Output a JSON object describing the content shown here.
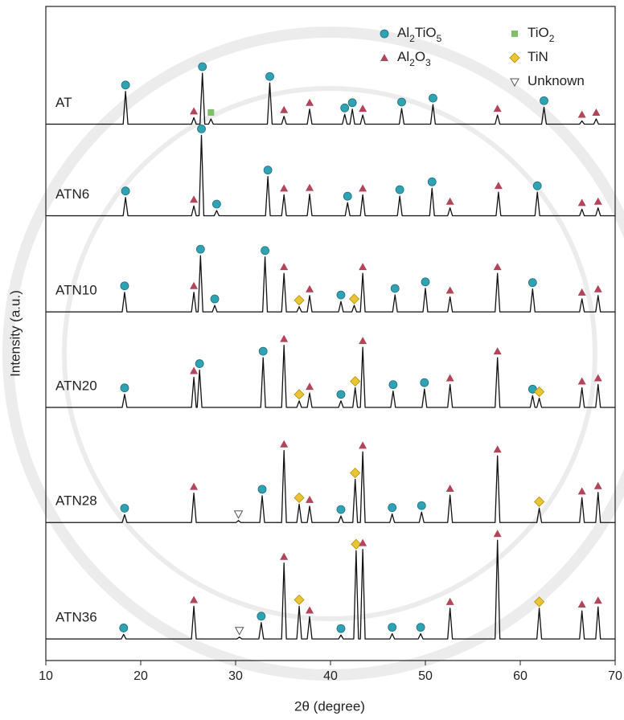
{
  "chart_data": {
    "type": "line",
    "x_label": "2θ (degree)",
    "y_label": "Intensity (a.u.)",
    "xlim": [
      10,
      70
    ],
    "xticks": [
      10,
      20,
      30,
      40,
      50,
      60,
      70
    ],
    "ylim": [
      0,
      100
    ],
    "legend": [
      {
        "name": "Al2TiO5",
        "color": "#2fa3b4",
        "marker": "circle"
      },
      {
        "name": "Al2O3",
        "color": "#b2455a",
        "marker": "triangle"
      },
      {
        "name": "TiO2",
        "color": "#7fbf6a",
        "marker": "square"
      },
      {
        "name": "TiN",
        "color": "#e8c531",
        "marker": "diamond"
      },
      {
        "name": "Unknown",
        "color": "#555555",
        "marker": "triangle-down"
      }
    ],
    "series": [
      {
        "name": "AT",
        "color": "#111111",
        "x": [
          10,
          18.15,
          18.4,
          18.65,
          25.35,
          25.6,
          25.85,
          26.25,
          26.5,
          26.75,
          27.15,
          27.4,
          27.65,
          33.35,
          33.6,
          33.85,
          34.85,
          35.1,
          35.35,
          37.55,
          37.8,
          38.05,
          41.25,
          41.5,
          41.75,
          42.05,
          42.3,
          42.55,
          43.15,
          43.4,
          43.65,
          47.25,
          47.5,
          47.75,
          50.55,
          50.8,
          51.05,
          57.35,
          57.6,
          57.85,
          62.25,
          62.5,
          62.75,
          66.25,
          66.5,
          66.75,
          67.75,
          68,
          68.25,
          70
        ],
        "values": [
          82,
          82,
          87,
          82,
          82,
          83,
          82,
          82,
          89.8,
          82,
          82,
          82.8,
          82,
          82,
          88.3,
          82,
          82,
          83.2,
          82,
          82,
          84.3,
          82,
          82,
          83.5,
          82,
          82,
          84.3,
          82,
          82,
          83.4,
          82,
          82,
          84.4,
          82,
          82,
          85,
          82,
          82,
          83.4,
          82,
          82,
          84.6,
          82,
          82,
          82.5,
          82,
          82,
          82.8,
          82,
          82
        ],
        "phases": [
          null,
          null,
          0,
          null,
          null,
          1,
          null,
          null,
          0,
          null,
          null,
          2,
          null,
          null,
          0,
          null,
          null,
          1,
          null,
          null,
          1,
          null,
          null,
          0,
          null,
          null,
          0,
          null,
          null,
          1,
          null,
          null,
          0,
          null,
          null,
          0,
          null,
          null,
          1,
          null,
          null,
          0,
          null,
          null,
          1,
          null,
          null,
          1,
          null,
          null
        ]
      },
      {
        "name": "ATN6",
        "color": "#111111",
        "x": [
          10,
          18.15,
          18.4,
          18.65,
          25.35,
          25.6,
          25.85,
          26.15,
          26.4,
          26.65,
          27.75,
          28,
          28.25,
          33.15,
          33.4,
          33.65,
          34.85,
          35.1,
          35.35,
          37.55,
          37.8,
          38.05,
          41.55,
          41.8,
          42.05,
          43.15,
          43.4,
          43.65,
          47.05,
          47.3,
          47.55,
          50.45,
          50.7,
          50.95,
          52.35,
          52.6,
          52.85,
          57.45,
          57.7,
          57.95,
          61.55,
          61.8,
          62.05,
          66.25,
          66.5,
          66.75,
          67.95,
          68.2,
          68.45,
          70
        ],
        "values": [
          68,
          68,
          70.8,
          68,
          68,
          69.5,
          68,
          68,
          80.3,
          68,
          68,
          68.8,
          68,
          68,
          74,
          68,
          68,
          71.2,
          68,
          68,
          71.3,
          68,
          68,
          70,
          68,
          68,
          71.2,
          68,
          68,
          71,
          68,
          68,
          72.2,
          68,
          68,
          69.2,
          68,
          68,
          71.6,
          68,
          68,
          71.6,
          68,
          68,
          69,
          68,
          68,
          69.2,
          68,
          68
        ],
        "phases": [
          null,
          null,
          0,
          null,
          null,
          1,
          null,
          null,
          0,
          null,
          null,
          0,
          null,
          null,
          0,
          null,
          null,
          1,
          null,
          null,
          1,
          null,
          null,
          0,
          null,
          null,
          1,
          null,
          null,
          0,
          null,
          null,
          0,
          null,
          null,
          1,
          null,
          null,
          1,
          null,
          null,
          0,
          null,
          null,
          1,
          null,
          null,
          1,
          null,
          null
        ]
      },
      {
        "name": "ATN10",
        "color": "#111111",
        "x": [
          10,
          18.05,
          18.3,
          18.55,
          25.35,
          25.6,
          25.85,
          26.05,
          26.3,
          26.55,
          27.55,
          27.8,
          28.05,
          32.85,
          33.1,
          33.35,
          34.85,
          35.1,
          35.35,
          36.45,
          36.7,
          36.95,
          37.55,
          37.8,
          38.05,
          40.85,
          41.1,
          41.35,
          42.25,
          42.5,
          42.75,
          43.15,
          43.4,
          43.65,
          46.55,
          46.8,
          47.05,
          49.75,
          50,
          50.25,
          52.35,
          52.6,
          52.85,
          57.35,
          57.6,
          57.85,
          61.05,
          61.3,
          61.55,
          66.25,
          66.5,
          66.75,
          67.95,
          68.2,
          68.45,
          70
        ],
        "values": [
          53.3,
          53.3,
          56.3,
          53.3,
          53.3,
          56.3,
          53.3,
          53.3,
          61.9,
          53.3,
          53.3,
          54.3,
          53.3,
          53.3,
          61.7,
          53.3,
          53.3,
          59.2,
          53.3,
          53.3,
          54.1,
          53.3,
          53.3,
          55.8,
          53.3,
          53.3,
          54.9,
          53.3,
          53.3,
          54.3,
          53.3,
          53.3,
          59.2,
          53.3,
          53.3,
          55.9,
          53.3,
          53.3,
          56.9,
          53.3,
          53.3,
          55.6,
          53.3,
          53.3,
          59.2,
          53.3,
          53.3,
          56.8,
          53.3,
          53.3,
          55.3,
          53.3,
          53.3,
          55.8,
          53.3,
          53.3
        ],
        "phases": [
          null,
          null,
          0,
          null,
          null,
          1,
          null,
          null,
          0,
          null,
          null,
          0,
          null,
          null,
          0,
          null,
          null,
          1,
          null,
          null,
          3,
          null,
          null,
          1,
          null,
          null,
          0,
          null,
          null,
          3,
          null,
          null,
          1,
          null,
          null,
          0,
          null,
          null,
          0,
          null,
          null,
          1,
          null,
          null,
          1,
          null,
          null,
          0,
          null,
          null,
          1,
          null,
          null,
          1,
          null,
          null
        ]
      },
      {
        "name": "ATN20",
        "color": "#111111",
        "x": [
          10,
          18.05,
          18.3,
          18.55,
          25.35,
          25.6,
          25.85,
          25.95,
          26.2,
          26.45,
          32.65,
          32.9,
          33.15,
          34.85,
          35.1,
          35.35,
          36.45,
          36.7,
          36.95,
          37.55,
          37.8,
          38.05,
          40.85,
          41.1,
          41.35,
          42.35,
          42.6,
          42.85,
          43.15,
          43.4,
          43.65,
          46.35,
          46.6,
          46.85,
          49.65,
          49.9,
          50.15,
          52.35,
          52.6,
          52.85,
          57.35,
          57.6,
          57.85,
          61.05,
          61.3,
          61.55,
          61.75,
          62,
          62.25,
          66.25,
          66.5,
          66.75,
          67.95,
          68.2,
          68.45,
          70
        ],
        "values": [
          38.7,
          38.7,
          40.7,
          38.7,
          38.7,
          43.3,
          38.7,
          38.7,
          44.4,
          38.7,
          38.7,
          46.3,
          38.7,
          38.7,
          48.2,
          38.7,
          38.7,
          39.7,
          38.7,
          38.7,
          40.9,
          38.7,
          38.7,
          39.7,
          38.7,
          38.7,
          41.7,
          38.7,
          38.7,
          47.9,
          38.7,
          38.7,
          41.2,
          38.7,
          38.7,
          41.5,
          38.7,
          38.7,
          42.2,
          38.7,
          38.7,
          46.3,
          38.7,
          38.7,
          40.5,
          38.7,
          38.7,
          40.1,
          38.7,
          38.7,
          41.7,
          38.7,
          38.7,
          42.2,
          38.7,
          38.7
        ],
        "phases": [
          null,
          null,
          0,
          null,
          null,
          1,
          null,
          null,
          0,
          null,
          null,
          0,
          null,
          null,
          1,
          null,
          null,
          3,
          null,
          null,
          1,
          null,
          null,
          0,
          null,
          null,
          3,
          null,
          null,
          1,
          null,
          null,
          0,
          null,
          null,
          0,
          null,
          null,
          1,
          null,
          null,
          1,
          null,
          null,
          0,
          null,
          null,
          3,
          null,
          null,
          1,
          null,
          null,
          1,
          null,
          null
        ]
      },
      {
        "name": "ATN28",
        "color": "#111111",
        "x": [
          10,
          18.05,
          18.3,
          18.55,
          25.35,
          25.6,
          25.85,
          30.05,
          30.3,
          30.55,
          32.55,
          32.8,
          33.05,
          34.85,
          35.1,
          35.35,
          36.45,
          36.7,
          36.95,
          37.55,
          37.8,
          38.05,
          40.85,
          41.1,
          41.35,
          42.35,
          42.6,
          42.85,
          43.15,
          43.4,
          43.65,
          46.25,
          46.5,
          46.75,
          49.35,
          49.6,
          49.85,
          52.35,
          52.6,
          52.85,
          57.35,
          57.6,
          57.85,
          61.75,
          62,
          62.25,
          66.25,
          66.5,
          66.75,
          67.95,
          68.2,
          68.45,
          70
        ],
        "values": [
          21.1,
          21.1,
          22.3,
          21.1,
          21.1,
          25.6,
          21.1,
          21.1,
          21.4,
          21.1,
          21.1,
          25.2,
          21.1,
          21.1,
          32.1,
          21.1,
          21.1,
          23.9,
          21.1,
          21.1,
          23.6,
          21.1,
          21.1,
          22.1,
          21.1,
          21.1,
          27.7,
          21.1,
          21.1,
          31.9,
          21.1,
          21.1,
          22.4,
          21.1,
          21.1,
          22.7,
          21.1,
          21.1,
          25.3,
          21.1,
          21.1,
          31.3,
          21.1,
          21.1,
          23.3,
          21.1,
          21.1,
          24.9,
          21.1,
          21.1,
          25.7,
          21.1,
          21.1
        ],
        "phases": [
          null,
          null,
          0,
          null,
          null,
          1,
          null,
          null,
          4,
          null,
          null,
          0,
          null,
          null,
          1,
          null,
          null,
          3,
          null,
          null,
          1,
          null,
          null,
          0,
          null,
          null,
          3,
          null,
          null,
          1,
          null,
          null,
          0,
          null,
          null,
          0,
          null,
          null,
          1,
          null,
          null,
          1,
          null,
          null,
          3,
          null,
          null,
          1,
          null,
          null,
          1,
          null,
          null
        ]
      },
      {
        "name": "ATN36",
        "color": "#111111",
        "x": [
          10,
          17.95,
          18.2,
          18.45,
          25.35,
          25.6,
          25.85,
          30.15,
          30.4,
          30.65,
          32.45,
          32.7,
          32.95,
          34.85,
          35.1,
          35.35,
          36.45,
          36.7,
          36.95,
          37.55,
          37.8,
          38.05,
          40.85,
          41.1,
          41.35,
          42.45,
          42.7,
          42.95,
          43.15,
          43.4,
          43.65,
          46.25,
          46.5,
          46.75,
          49.25,
          49.5,
          49.75,
          52.35,
          52.6,
          52.85,
          57.35,
          57.6,
          57.85,
          61.75,
          62,
          62.25,
          66.25,
          66.5,
          66.75,
          67.95,
          68.2,
          68.45,
          70
        ],
        "values": [
          3.3,
          3.3,
          4,
          3.3,
          3.3,
          8.3,
          3.3,
          3.3,
          3.6,
          3.3,
          3.3,
          5.8,
          3.3,
          3.3,
          14.9,
          3.3,
          3.3,
          8.3,
          3.3,
          3.3,
          6.7,
          3.3,
          3.3,
          3.9,
          3.3,
          3.3,
          16.8,
          3.3,
          3.3,
          17,
          3.3,
          3.3,
          4.1,
          3.3,
          3.3,
          4.1,
          3.3,
          3.3,
          8,
          3.3,
          3.3,
          18.4,
          3.3,
          3.3,
          8,
          3.3,
          3.3,
          7.6,
          3.3,
          3.3,
          8.2,
          3.3,
          3.3
        ],
        "phases": [
          null,
          null,
          0,
          null,
          null,
          1,
          null,
          null,
          4,
          null,
          null,
          0,
          null,
          null,
          1,
          null,
          null,
          3,
          null,
          null,
          1,
          null,
          null,
          0,
          null,
          null,
          3,
          null,
          null,
          1,
          null,
          null,
          0,
          null,
          null,
          0,
          null,
          null,
          1,
          null,
          null,
          1,
          null,
          null,
          3,
          null,
          null,
          1,
          null,
          null,
          1,
          null,
          null
        ]
      }
    ]
  }
}
